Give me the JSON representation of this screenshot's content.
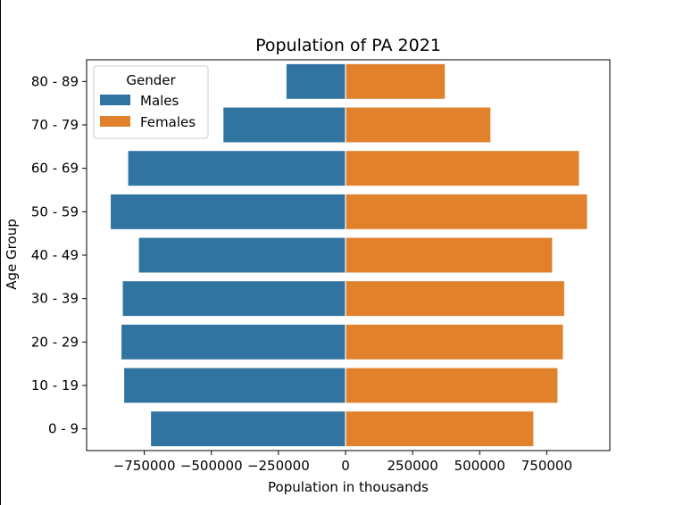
{
  "chart_data": {
    "type": "bar",
    "orientation": "horizontal",
    "title": "Population of PA 2021",
    "xlabel": "Population in thousands",
    "ylabel": "Age Group",
    "categories": [
      "80 - 89",
      "70 - 79",
      "60 - 69",
      "50 - 59",
      "40 - 49",
      "30 - 39",
      "20 - 29",
      "10 - 19",
      "0 - 9"
    ],
    "series": [
      {
        "name": "Males",
        "color": "#3274a1",
        "values": [
          -220000,
          -455000,
          -810000,
          -875000,
          -770000,
          -830000,
          -835000,
          -825000,
          -725000
        ]
      },
      {
        "name": "Females",
        "color": "#e1812c",
        "values": [
          370000,
          540000,
          870000,
          900000,
          770000,
          815000,
          810000,
          790000,
          700000
        ]
      }
    ],
    "xlim": [
      -965000,
      985000
    ],
    "xticks": [
      -750000,
      -500000,
      -250000,
      0,
      250000,
      500000,
      750000
    ],
    "xtick_labels": [
      "−750000",
      "−500000",
      "−250000",
      "0",
      "250000",
      "500000",
      "750000"
    ],
    "legend": {
      "title": "Gender",
      "placement": "top-left"
    },
    "grid": false
  }
}
